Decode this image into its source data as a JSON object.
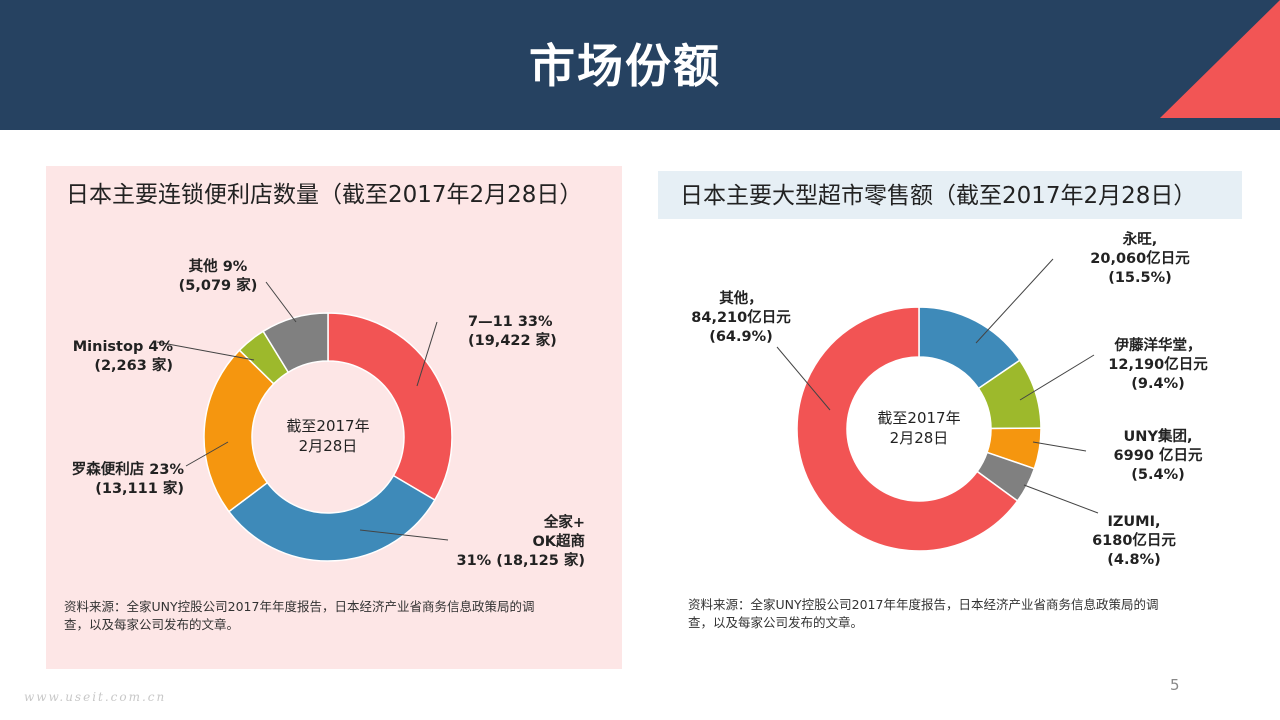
{
  "header": {
    "title": "市场份额"
  },
  "colors": {
    "header_bg": "#264261",
    "accent_corner": "#f25555",
    "left_panel_bg": "#fde6e6",
    "right_title_bg": "#e6eff5"
  },
  "chart_data": [
    {
      "type": "pie",
      "variant": "donut",
      "title": "日本主要连锁便利店数量（截至2017年2月28日）",
      "center_label": [
        "截至2017年",
        "2月28日"
      ],
      "unit": "家",
      "slices": [
        {
          "name": "7—11",
          "value": 19422,
          "percent": 33,
          "color": "#f25454",
          "label_lines": [
            "7—11 33%",
            "(19,422 家)"
          ]
        },
        {
          "name": "全家+OK超商",
          "value": 18125,
          "percent": 31,
          "color": "#3e8ab9",
          "label_lines": [
            "全家+",
            "OK超商",
            "31% (18,125 家)"
          ]
        },
        {
          "name": "罗森便利店",
          "value": 13111,
          "percent": 23,
          "color": "#f5960f",
          "label_lines": [
            "罗森便利店 23%",
            "(13,111 家)"
          ]
        },
        {
          "name": "Ministop",
          "value": 2263,
          "percent": 4,
          "color": "#9db92c",
          "label_lines": [
            "Ministop 4%",
            "(2,263 家)"
          ]
        },
        {
          "name": "其他",
          "value": 5079,
          "percent": 9,
          "color": "#808080",
          "label_lines": [
            "其他 9%",
            "(5,079 家)"
          ]
        }
      ],
      "source": [
        "资料来源：全家UNY控股公司2017年年度报告，日本经济产业省商务信息政策局的调",
        "查，以及每家公司发布的文章。"
      ]
    },
    {
      "type": "pie",
      "variant": "donut",
      "title": "日本主要大型超市零售额（截至2017年2月28日）",
      "center_label": [
        "截至2017年",
        "2月28日"
      ],
      "unit": "亿日元",
      "slices": [
        {
          "name": "永旺",
          "value": 20060,
          "percent": 15.5,
          "color": "#3e8ab9",
          "label_lines": [
            "永旺,",
            "20,060亿日元",
            "(15.5%)"
          ]
        },
        {
          "name": "伊藤洋华堂",
          "value": 12190,
          "percent": 9.4,
          "color": "#9db92c",
          "label_lines": [
            "伊藤洋华堂，",
            "12,190亿日元",
            "(9.4%)"
          ]
        },
        {
          "name": "UNY集团",
          "value": 6990,
          "percent": 5.4,
          "color": "#f5960f",
          "label_lines": [
            "UNY集团,",
            "6990 亿日元",
            "(5.4%)"
          ]
        },
        {
          "name": "IZUMI",
          "value": 6180,
          "percent": 4.8,
          "color": "#808080",
          "label_lines": [
            "IZUMI,",
            "6180亿日元",
            "(4.8%)"
          ]
        },
        {
          "name": "其他",
          "value": 84210,
          "percent": 64.9,
          "color": "#f25454",
          "label_lines": [
            "其他，",
            "84,210亿日元",
            "(64.9%)"
          ]
        }
      ],
      "source": [
        "资料来源：全家UNY控股公司2017年年度报告，日本经济产业省商务信息政策局的调",
        "查，以及每家公司发布的文章。"
      ]
    }
  ],
  "footer": {
    "page_number": "5",
    "watermark": "www.useit.com.cn"
  }
}
